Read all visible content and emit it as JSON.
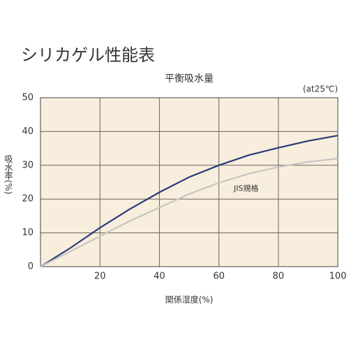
{
  "chart_data": {
    "type": "line",
    "title": "シリカゲル性能表",
    "subtitle": "平衡吸水量",
    "annotation": "(at25℃)",
    "x_label": "関係湿度(%)",
    "y_label": "吸水率(%)",
    "x": [
      0,
      10,
      20,
      30,
      40,
      50,
      60,
      70,
      80,
      90,
      100
    ],
    "series": [
      {
        "color": "#2b3a7a",
        "values": [
          0,
          5.5,
          11.5,
          17,
          22,
          26.5,
          30,
          33,
          35.2,
          37.2,
          38.8
        ]
      },
      {
        "name": "JIS規格",
        "color": "#c8c4c2",
        "values": [
          0,
          4.5,
          9,
          13.5,
          17.5,
          21.5,
          24.8,
          27.5,
          29.5,
          31,
          32
        ]
      }
    ],
    "xlim": [
      0,
      100
    ],
    "xticks": [
      20,
      40,
      60,
      80,
      100
    ],
    "ylim": [
      0,
      50
    ],
    "yticks": [
      0,
      10,
      20,
      30,
      40,
      50
    ],
    "grid": true,
    "background": "#f8eedd"
  }
}
